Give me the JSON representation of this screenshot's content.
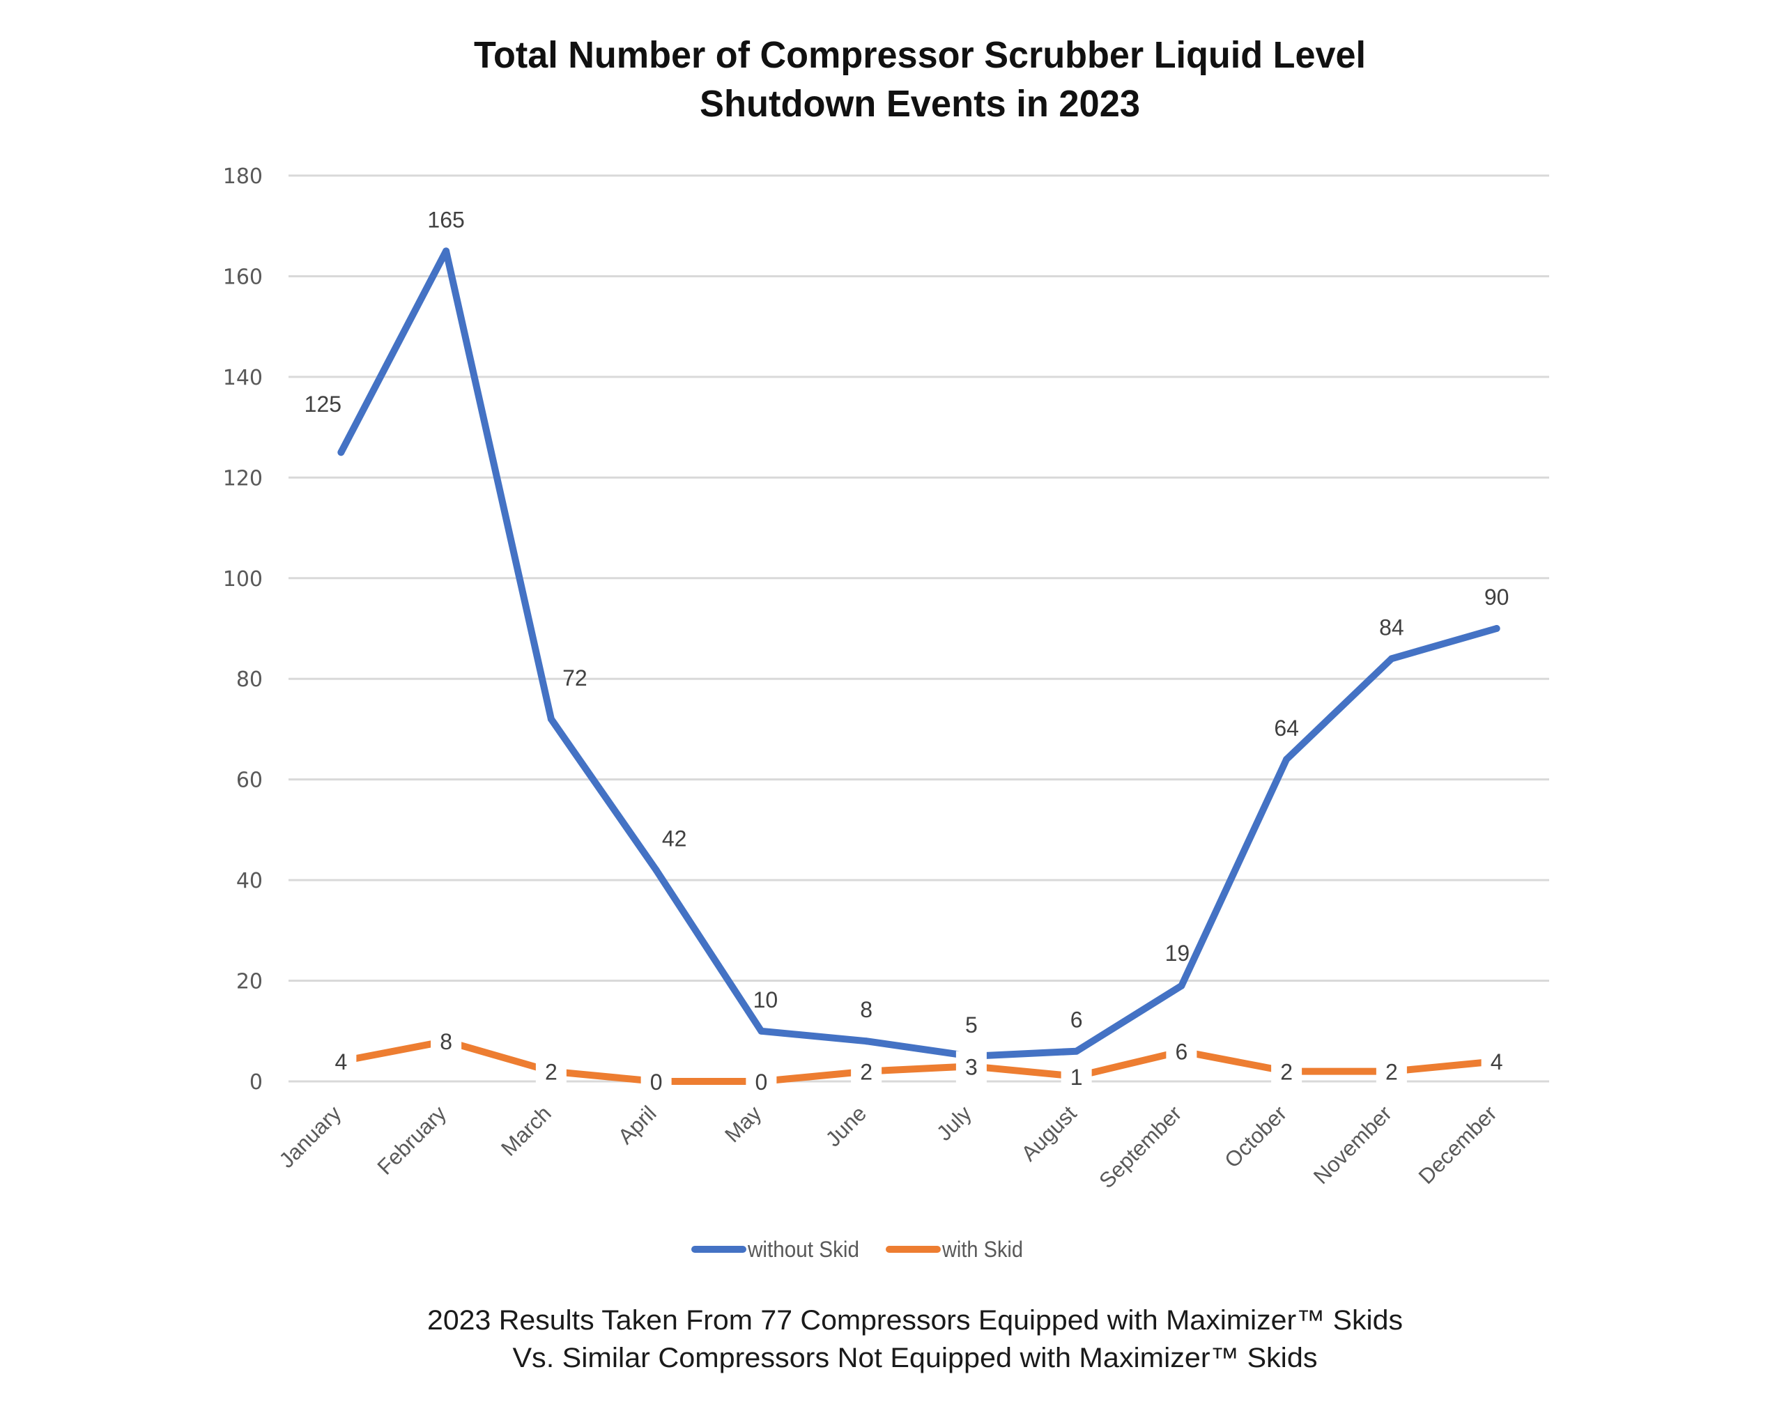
{
  "chart_data": {
    "type": "line",
    "title": "Total Number of Compressor Scrubber Liquid Level Shutdown Events in 2023",
    "title_lines": [
      "Total Number of Compressor Scrubber Liquid Level",
      "Shutdown Events in 2023"
    ],
    "xlabel": "",
    "ylabel": "",
    "categories": [
      "January",
      "February",
      "March",
      "April",
      "May",
      "June",
      "July",
      "August",
      "September",
      "October",
      "November",
      "December"
    ],
    "ylim": [
      0,
      180
    ],
    "yticks": [
      0,
      20,
      40,
      60,
      80,
      100,
      120,
      140,
      160,
      180
    ],
    "grid": true,
    "legend_position": "bottom",
    "data_labels": true,
    "series": [
      {
        "name": "without Skid",
        "color": "#4472C4",
        "values": [
          125,
          165,
          72,
          42,
          10,
          8,
          5,
          6,
          19,
          64,
          84,
          90
        ]
      },
      {
        "name": "with Skid",
        "color": "#ED7D31",
        "values": [
          4,
          8,
          2,
          0,
          0,
          2,
          3,
          1,
          6,
          2,
          2,
          4
        ]
      }
    ],
    "footnote_lines": [
      "2023 Results Taken From 77 Compressors Equipped with Maximizer™ Skids",
      "Vs. Similar Compressors Not Equipped with Maximizer™ Skids"
    ]
  }
}
